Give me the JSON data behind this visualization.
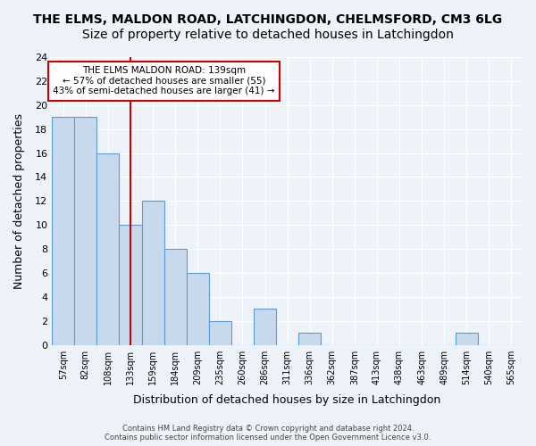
{
  "title": "THE ELMS, MALDON ROAD, LATCHINGDON, CHELMSFORD, CM3 6LG",
  "subtitle": "Size of property relative to detached houses in Latchingdon",
  "xlabel": "Distribution of detached houses by size in Latchingdon",
  "ylabel": "Number of detached properties",
  "categories": [
    "57sqm",
    "82sqm",
    "108sqm",
    "133sqm",
    "159sqm",
    "184sqm",
    "209sqm",
    "235sqm",
    "260sqm",
    "286sqm",
    "311sqm",
    "336sqm",
    "362sqm",
    "387sqm",
    "413sqm",
    "438sqm",
    "463sqm",
    "489sqm",
    "514sqm",
    "540sqm",
    "565sqm"
  ],
  "values": [
    19,
    19,
    16,
    10,
    12,
    8,
    6,
    2,
    0,
    3,
    0,
    1,
    0,
    0,
    0,
    0,
    0,
    0,
    1,
    0,
    0
  ],
  "bar_color": "#c9d9ec",
  "bar_edge_color": "#5b9bd5",
  "reference_line_x": 3,
  "reference_line_color": "#cc0000",
  "ylim": [
    0,
    24
  ],
  "yticks": [
    0,
    2,
    4,
    6,
    8,
    10,
    12,
    14,
    16,
    18,
    20,
    22,
    24
  ],
  "annotation_text": "THE ELMS MALDON ROAD: 139sqm\n← 57% of detached houses are smaller (55)\n43% of semi-detached houses are larger (41) →",
  "annotation_box_color": "#ffffff",
  "annotation_box_edge": "#cc0000",
  "footnote": "Contains HM Land Registry data © Crown copyright and database right 2024.\nContains public sector information licensed under the Open Government Licence v3.0.",
  "background_color": "#eef3f9",
  "title_fontsize": 10,
  "subtitle_fontsize": 10
}
